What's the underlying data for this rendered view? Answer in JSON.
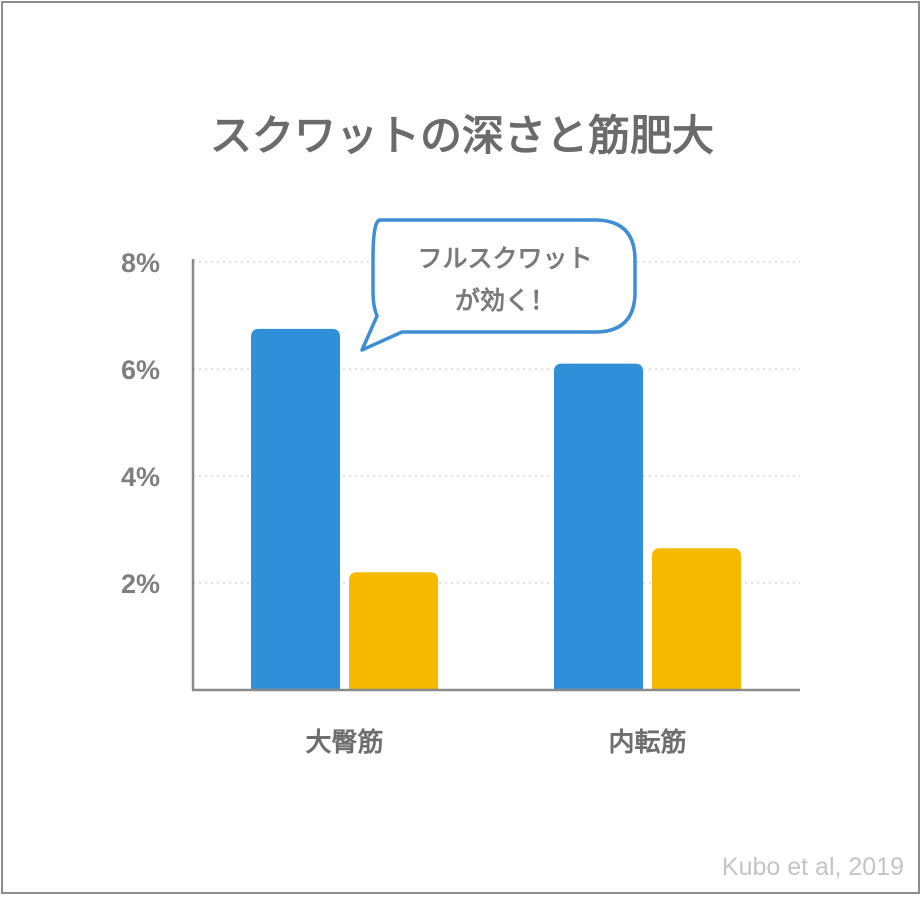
{
  "chart_data": {
    "type": "bar",
    "title": "スクワットの深さと筋肥大",
    "categories": [
      "大臀筋",
      "内転筋"
    ],
    "series": [
      {
        "values": [
          6.75,
          6.1
        ],
        "color": "#2f8fd8"
      },
      {
        "values": [
          2.2,
          2.65
        ],
        "color": "#f7b900"
      }
    ],
    "yticks": [
      "8%",
      "6%",
      "4%",
      "2%"
    ],
    "ytick_values": [
      8,
      6,
      4,
      2
    ],
    "ylim": [
      0,
      8
    ],
    "xlabel": "",
    "ylabel": "",
    "grid": true,
    "annotation": {
      "lines": [
        "フルスクワット",
        "が効く！"
      ],
      "border_color": "#3e8ed3"
    },
    "source": "Kubo et al, 2019"
  }
}
